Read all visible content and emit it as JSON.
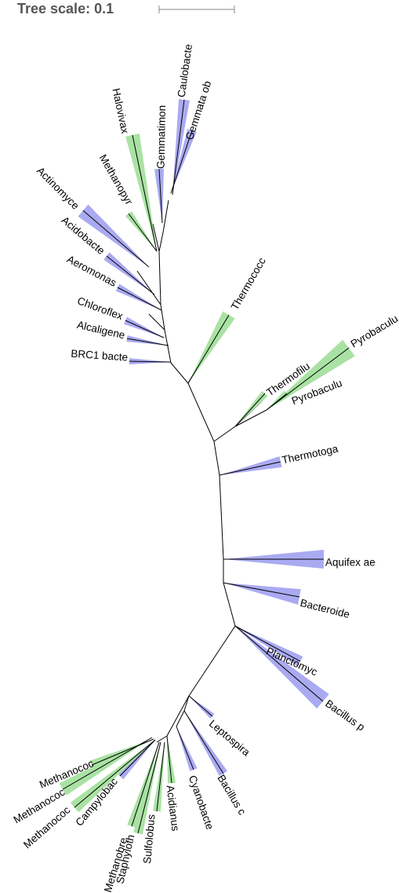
{
  "scale": {
    "title": "Tree scale: 0.1"
  },
  "colors": {
    "blue": "#aaaaf2",
    "green": "#a9e2a3",
    "branch": "#000000",
    "scale_bar": "#888888"
  },
  "leaves": [
    {
      "label": "Caulobacte",
      "clade_color": "blue"
    },
    {
      "label": "Gemmata ob",
      "clade_color": "blue"
    },
    {
      "label": "Gemmatimon",
      "clade_color": "blue"
    },
    {
      "label": "Halovivax",
      "clade_color": "green"
    },
    {
      "label": "Methanopyr",
      "clade_color": "green"
    },
    {
      "label": "Actinomyce",
      "clade_color": "blue"
    },
    {
      "label": "Acidobacte",
      "clade_color": "blue"
    },
    {
      "label": "Aeromonas",
      "clade_color": "blue"
    },
    {
      "label": "Chloroflex",
      "clade_color": "blue"
    },
    {
      "label": "Alcaligene",
      "clade_color": "blue"
    },
    {
      "label": "BRC1 bacte",
      "clade_color": "blue"
    },
    {
      "label": "Thermococc",
      "clade_color": "green"
    },
    {
      "label": "Thermofilu",
      "clade_color": "green"
    },
    {
      "label": "Pyrobaculu",
      "clade_color": "green"
    },
    {
      "label": "Pyrobaculu",
      "clade_color": "green"
    },
    {
      "label": "Thermotoga",
      "clade_color": "blue"
    },
    {
      "label": "Aquifex ae",
      "clade_color": "blue"
    },
    {
      "label": "Bacteroide",
      "clade_color": "blue"
    },
    {
      "label": "Planctomyc",
      "clade_color": "blue"
    },
    {
      "label": "Bacillus p",
      "clade_color": "blue"
    },
    {
      "label": "Leptospira",
      "clade_color": "blue"
    },
    {
      "label": "Bacillus c",
      "clade_color": "blue"
    },
    {
      "label": "Cyanobacte",
      "clade_color": "blue"
    },
    {
      "label": "Acidianus",
      "clade_color": "green"
    },
    {
      "label": "Sulfolobus",
      "clade_color": "green"
    },
    {
      "label": "Staphyloth",
      "clade_color": "green"
    },
    {
      "label": "Methanobre",
      "clade_color": "green"
    },
    {
      "label": "Campylobac",
      "clade_color": "blue"
    },
    {
      "label": "Methanococ",
      "clade_color": "green"
    },
    {
      "label": "Methanococ",
      "clade_color": "green"
    },
    {
      "label": "Methanococ",
      "clade_color": "green"
    }
  ]
}
